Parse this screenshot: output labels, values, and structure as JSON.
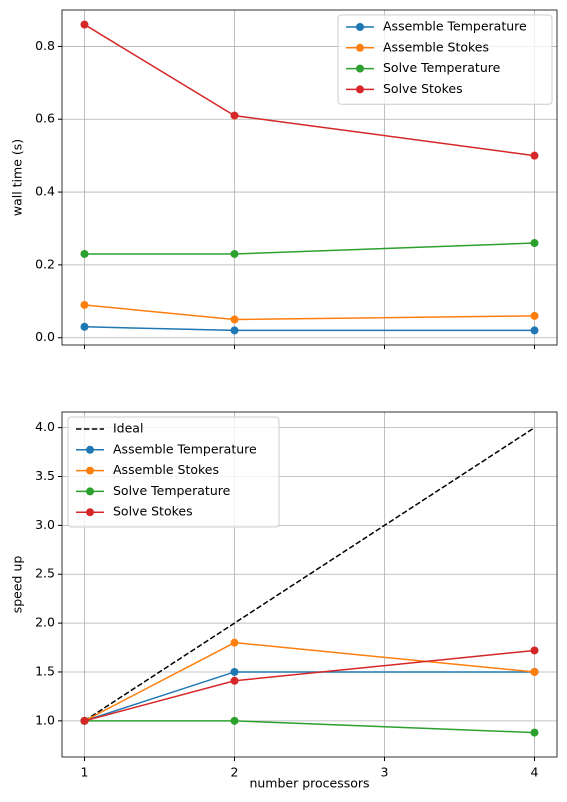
{
  "chart_data": [
    {
      "type": "line",
      "ylabel": "wall time (s)",
      "x": [
        1,
        2,
        4
      ],
      "xlim": [
        0.85,
        4.15
      ],
      "xticks": [
        1,
        2,
        3,
        4
      ],
      "xticklabels": false,
      "ylim": [
        -0.02,
        0.9
      ],
      "yticks": [
        {
          "value": 0,
          "label": "0.0"
        },
        0.2,
        0.4,
        0.6,
        0.8
      ],
      "grid": true,
      "legend": "upper right",
      "series": [
        {
          "name": "Assemble Temperature",
          "color": "#1f77b4",
          "values": [
            0.03,
            0.02,
            0.02
          ]
        },
        {
          "name": "Assemble Stokes",
          "color": "#ff7f0e",
          "values": [
            0.09,
            0.05,
            0.06
          ]
        },
        {
          "name": "Solve Temperature",
          "color": "#2ca02c",
          "values": [
            0.23,
            0.23,
            0.26
          ]
        },
        {
          "name": "Solve Stokes",
          "color": "#d62728",
          "values": [
            0.86,
            0.61,
            0.5
          ]
        }
      ]
    },
    {
      "type": "line",
      "ylabel": "speed up",
      "xlabel": "number processors",
      "x": [
        1,
        2,
        4
      ],
      "xlim": [
        0.85,
        4.15
      ],
      "xticks": [
        1,
        2,
        3,
        4
      ],
      "xticklabels": true,
      "ylim": [
        0.63,
        4.16
      ],
      "yticks": [
        {
          "value": 1,
          "label": "1.0"
        },
        1.5,
        {
          "value": 2,
          "label": "2.0"
        },
        2.5,
        {
          "value": 3,
          "label": "3.0"
        },
        3.5,
        {
          "value": 4,
          "label": "4.0"
        }
      ],
      "grid": true,
      "legend": "upper left",
      "series": [
        {
          "name": "Ideal",
          "color": "#000000",
          "dashed": true,
          "markers": false,
          "values": [
            1,
            2,
            4
          ]
        },
        {
          "name": "Assemble Temperature",
          "color": "#1f77b4",
          "values": [
            1,
            1.5,
            1.5
          ]
        },
        {
          "name": "Assemble Stokes",
          "color": "#ff7f0e",
          "values": [
            1,
            1.8,
            1.5
          ]
        },
        {
          "name": "Solve Temperature",
          "color": "#2ca02c",
          "values": [
            1,
            1.0,
            0.88
          ]
        },
        {
          "name": "Solve Stokes",
          "color": "#d62728",
          "values": [
            1,
            1.41,
            1.72
          ]
        }
      ]
    }
  ]
}
